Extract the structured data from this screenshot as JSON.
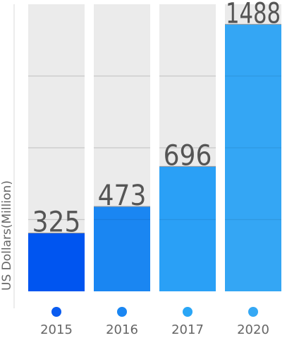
{
  "chart_data": {
    "type": "bar",
    "ylabel": "US Dollars(Million)",
    "categories": [
      "2015",
      "2016",
      "2017",
      "2020"
    ],
    "values": [
      325,
      473,
      696,
      1488
    ],
    "ylim": [
      0,
      1600
    ],
    "grid": true,
    "bar_colors": [
      "#0055f0",
      "#1a86f2",
      "#2aa0f6",
      "#34a6f4"
    ],
    "track_color": "#ebebeb",
    "timeline_colors": [
      "#0a5cf0",
      "#1a86f2",
      "#2aa6f6",
      "#35a8f4"
    ]
  }
}
